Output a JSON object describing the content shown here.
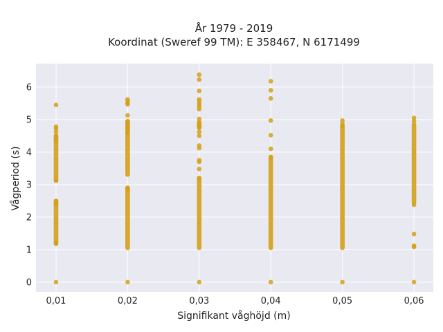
{
  "chart_data": {
    "type": "scatter",
    "title_line1": "År 1979 - 2019",
    "title_line2": "Koordinat (Sweref 99 TM): E 358467, N 6171499",
    "xlabel": "Signifikant våghöjd (m)",
    "ylabel": "Vågperiod (s)",
    "x_ticks": [
      0.01,
      0.02,
      0.03,
      0.04,
      0.05,
      0.06
    ],
    "x_tick_labels": [
      "0,01",
      "0,02",
      "0,03",
      "0,04",
      "0,05",
      "0,06"
    ],
    "y_ticks": [
      0,
      1,
      2,
      3,
      4,
      5,
      6
    ],
    "y_tick_labels": [
      "0",
      "1",
      "2",
      "3",
      "4",
      "5",
      "6"
    ],
    "xlim": [
      0.0072,
      0.0627
    ],
    "ylim": [
      -0.3,
      6.72
    ],
    "grid": true,
    "colors": {
      "plot_bg": "#e9e9f1",
      "marker": "#d4a017",
      "grid": "#ffffff"
    },
    "series": [
      {
        "x": 0.01,
        "points": [
          0,
          5.45,
          4.78,
          4.72,
          4.62,
          4.5,
          4.42,
          4.33,
          2.5,
          2.45,
          2.4,
          1.2,
          1.18,
          3.12
        ],
        "bands": [
          [
            1.2,
            2.5
          ],
          [
            3.12,
            4.5
          ]
        ]
      },
      {
        "x": 0.02,
        "points": [
          0,
          5.62,
          5.57,
          5.5,
          5.47,
          5.13,
          4.95,
          4.88,
          4.82,
          4.75,
          4.7,
          4.6,
          2.9,
          2.85
        ],
        "bands": [
          [
            1.05,
            2.9
          ],
          [
            3.3,
            4.95
          ]
        ]
      },
      {
        "x": 0.03,
        "points": [
          0,
          6.38,
          6.23,
          5.88,
          5.62,
          5.56,
          5.48,
          5.4,
          5.32,
          5.02,
          4.9,
          4.83,
          4.75,
          4.62,
          4.5,
          4.2,
          4.12,
          3.75,
          3.7,
          3.48,
          3.2
        ],
        "bands": [
          [
            1.05,
            3.2
          ],
          [
            4.75,
            4.92
          ]
        ]
      },
      {
        "x": 0.04,
        "points": [
          0,
          6.18,
          5.9,
          5.65,
          4.97,
          4.52,
          4.1,
          3.85
        ],
        "bands": [
          [
            1.05,
            3.85
          ]
        ]
      },
      {
        "x": 0.05,
        "points": [
          0,
          4.97,
          4.87,
          4.8
        ],
        "bands": [
          [
            1.05,
            4.8
          ]
        ]
      },
      {
        "x": 0.06,
        "points": [
          0,
          5.05,
          4.95,
          2.38,
          1.48,
          1.12,
          1.08
        ],
        "bands": [
          [
            2.45,
            4.85
          ]
        ]
      }
    ]
  }
}
